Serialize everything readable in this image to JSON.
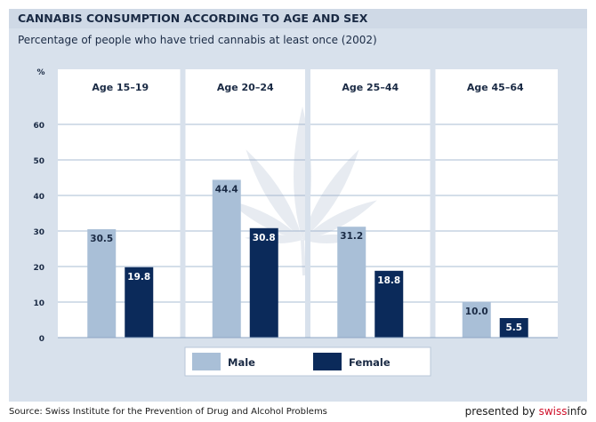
{
  "header": {
    "title": "CANNABIS CONSUMPTION ACCORDING TO AGE AND SEX",
    "subtitle": "Percentage of people who have tried cannabis at least once (2002)"
  },
  "chart_data": {
    "type": "bar",
    "ylabel": "%",
    "ylim": [
      0,
      60
    ],
    "yticks": [
      "0",
      "10",
      "20",
      "30",
      "40",
      "50",
      "60"
    ],
    "ytick_values": [
      0,
      10,
      20,
      30,
      40,
      50,
      60
    ],
    "categories": [
      "Age 15–19",
      "Age 20–24",
      "Age 25–44",
      "Age 45–64"
    ],
    "series": [
      {
        "name": "Male",
        "values": [
          30.5,
          44.4,
          31.2,
          10.0
        ],
        "labels": [
          "30.5",
          "44.4",
          "31.2",
          "10.0"
        ]
      },
      {
        "name": "Female",
        "values": [
          19.8,
          30.8,
          18.8,
          5.5
        ],
        "labels": [
          "19.8",
          "30.8",
          "18.8",
          "5.5"
        ]
      }
    ],
    "colors": {
      "male": "#a9bfd7",
      "female": "#0b2a5a",
      "background": "#d8e1ec"
    },
    "grid": true,
    "legend_position": "bottom"
  },
  "footer": {
    "source": "Source: Swiss Institute for the Prevention of Drug and Alcohol Problems",
    "presented_by": "presented by ",
    "brand_a": "swiss",
    "brand_b": "info"
  }
}
